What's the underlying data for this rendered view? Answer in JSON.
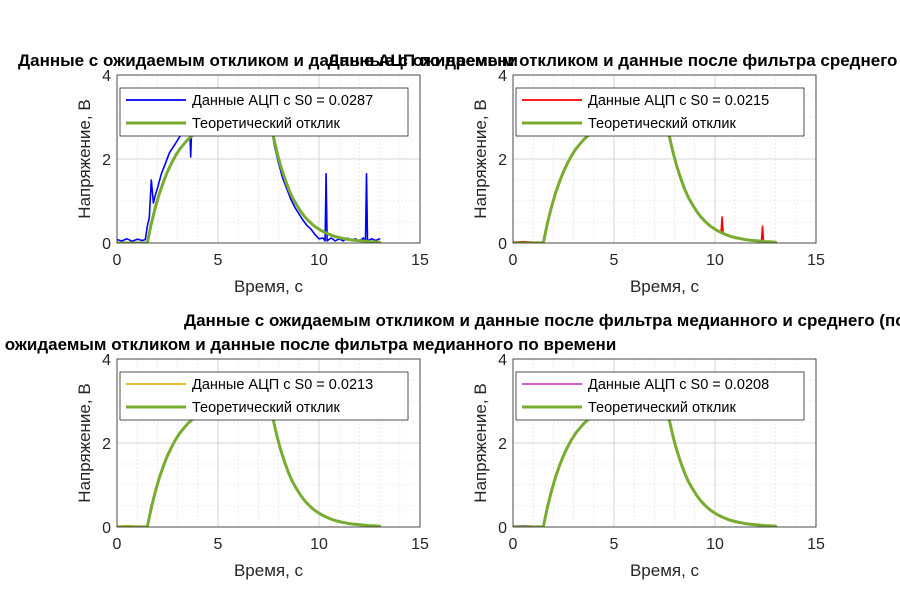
{
  "chart_data": [
    {
      "type": "line",
      "title": "Данные с ожидаемым откликом и данные АЦП по времени",
      "xlabel": "Время, с",
      "ylabel": "Напряжение, В",
      "xlim": [
        0,
        15
      ],
      "ylim": [
        0,
        4
      ],
      "xticks": [
        0,
        5,
        10,
        15
      ],
      "yticks": [
        0,
        2,
        4
      ],
      "grid": true,
      "legend_position": "top-right",
      "series": [
        {
          "name": "Данные АЦП с S0 = 0.0287",
          "color": "#0000ff",
          "x": [
            0,
            0.25,
            0.5,
            0.75,
            1.0,
            1.25,
            1.4,
            1.5,
            1.6,
            1.7,
            1.8,
            1.9,
            2.0,
            2.2,
            2.4,
            2.6,
            2.8,
            3.0,
            3.2,
            3.4,
            3.5,
            3.6,
            3.65,
            3.7,
            3.8,
            4.0,
            7.6,
            7.8,
            8.0,
            8.2,
            8.4,
            8.6,
            8.8,
            9.0,
            9.2,
            9.4,
            9.6,
            9.8,
            10.0,
            10.2,
            10.3,
            10.35,
            10.4,
            10.6,
            10.8,
            11.0,
            11.2,
            11.4,
            11.6,
            11.8,
            12.0,
            12.2,
            12.3,
            12.35,
            12.4,
            12.6,
            12.8,
            13.0
          ],
          "y": [
            0.08,
            0.05,
            0.1,
            0.04,
            0.09,
            0.06,
            0.08,
            0.4,
            0.6,
            1.5,
            0.95,
            1.15,
            1.3,
            1.65,
            1.9,
            2.15,
            2.3,
            2.45,
            2.6,
            2.7,
            2.75,
            2.75,
            2.05,
            2.75,
            2.8,
            2.85,
            2.85,
            2.3,
            1.9,
            1.55,
            1.3,
            1.05,
            0.85,
            0.7,
            0.55,
            0.42,
            0.33,
            0.2,
            0.1,
            0.12,
            0.05,
            1.65,
            0.05,
            0.12,
            0.05,
            0.1,
            0.05,
            0.12,
            0.06,
            0.1,
            0.05,
            0.12,
            0.05,
            1.65,
            0.05,
            0.1,
            0.06,
            0.1
          ]
        },
        {
          "name": "Теоретический отклик",
          "color": "#77ac30",
          "x": [
            0,
            1.5,
            1.7,
            1.9,
            2.1,
            2.3,
            2.5,
            2.7,
            2.9,
            3.1,
            3.3,
            3.5,
            3.7,
            3.9,
            7.7,
            7.9,
            8.1,
            8.3,
            8.5,
            8.7,
            8.9,
            9.1,
            9.3,
            9.5,
            9.7,
            9.9,
            10.1,
            10.3,
            10.5,
            10.7,
            10.9,
            11.1,
            11.3,
            11.5,
            11.7,
            11.9,
            12.1,
            12.3,
            12.5,
            12.7,
            13.0
          ],
          "y": [
            0.0,
            0.0,
            0.46,
            0.85,
            1.18,
            1.46,
            1.7,
            1.9,
            2.08,
            2.23,
            2.35,
            2.46,
            2.55,
            2.63,
            2.63,
            2.2,
            1.84,
            1.54,
            1.28,
            1.07,
            0.9,
            0.75,
            0.62,
            0.52,
            0.43,
            0.36,
            0.3,
            0.25,
            0.21,
            0.17,
            0.14,
            0.12,
            0.1,
            0.08,
            0.07,
            0.06,
            0.05,
            0.04,
            0.03,
            0.03,
            0.02
          ]
        }
      ]
    },
    {
      "type": "line",
      "title": "Данные с ожидаемым откликом и данные после фильтра среднего по времени",
      "xlabel": "Время, с",
      "ylabel": "Напряжение, В",
      "xlim": [
        0,
        15
      ],
      "ylim": [
        0,
        4
      ],
      "xticks": [
        0,
        5,
        10,
        15
      ],
      "yticks": [
        0,
        2,
        4
      ],
      "grid": true,
      "legend_position": "top-right",
      "series": [
        {
          "name": "Данные АЦП с S0 = 0.0215",
          "color": "#ff0000",
          "x": [
            0,
            0.5,
            1.0,
            1.5,
            1.7,
            1.9,
            2.1,
            2.3,
            2.5,
            2.7,
            2.9,
            3.1,
            3.3,
            3.5,
            3.7,
            3.9,
            7.7,
            7.9,
            8.1,
            8.3,
            8.5,
            8.7,
            8.9,
            9.1,
            9.3,
            9.5,
            9.7,
            9.9,
            10.1,
            10.2,
            10.3,
            10.35,
            10.4,
            10.5,
            10.7,
            10.9,
            11.1,
            11.3,
            11.5,
            11.7,
            11.9,
            12.1,
            12.2,
            12.3,
            12.35,
            12.4,
            12.5,
            12.7,
            13.0
          ],
          "y": [
            0.02,
            0.03,
            0.02,
            0.02,
            0.48,
            0.86,
            1.2,
            1.47,
            1.71,
            1.9,
            2.09,
            2.23,
            2.36,
            2.46,
            2.55,
            2.63,
            2.63,
            2.22,
            1.86,
            1.55,
            1.3,
            1.08,
            0.92,
            0.76,
            0.63,
            0.52,
            0.44,
            0.36,
            0.3,
            0.28,
            0.26,
            0.62,
            0.24,
            0.21,
            0.17,
            0.15,
            0.12,
            0.1,
            0.08,
            0.07,
            0.06,
            0.05,
            0.06,
            0.05,
            0.4,
            0.04,
            0.03,
            0.03,
            0.02
          ]
        },
        {
          "name": "Теоретический отклик",
          "color": "#77ac30",
          "x": [
            0,
            1.5,
            1.7,
            1.9,
            2.1,
            2.3,
            2.5,
            2.7,
            2.9,
            3.1,
            3.3,
            3.5,
            3.7,
            3.9,
            7.7,
            7.9,
            8.1,
            8.3,
            8.5,
            8.7,
            8.9,
            9.1,
            9.3,
            9.5,
            9.7,
            9.9,
            10.1,
            10.3,
            10.5,
            10.7,
            10.9,
            11.1,
            11.3,
            11.5,
            11.7,
            11.9,
            12.1,
            12.3,
            12.5,
            12.7,
            13.0
          ],
          "y": [
            0.0,
            0.0,
            0.46,
            0.85,
            1.18,
            1.46,
            1.7,
            1.9,
            2.08,
            2.23,
            2.35,
            2.46,
            2.55,
            2.63,
            2.63,
            2.2,
            1.84,
            1.54,
            1.28,
            1.07,
            0.9,
            0.75,
            0.62,
            0.52,
            0.43,
            0.36,
            0.3,
            0.25,
            0.21,
            0.17,
            0.14,
            0.12,
            0.1,
            0.08,
            0.07,
            0.06,
            0.05,
            0.04,
            0.03,
            0.03,
            0.02
          ]
        }
      ]
    },
    {
      "type": "line",
      "title": "Данные с ожидаемым откликом и данные после фильтра медианного по времени",
      "xlabel": "Время, с",
      "ylabel": "Напряжение, В",
      "xlim": [
        0,
        15
      ],
      "ylim": [
        0,
        4
      ],
      "xticks": [
        0,
        5,
        10,
        15
      ],
      "yticks": [
        0,
        2,
        4
      ],
      "grid": true,
      "legend_position": "top-right",
      "series": [
        {
          "name": "Данные АЦП с S0 = 0.0213",
          "color": "#edb120",
          "x": [
            0,
            0.5,
            1.0,
            1.5,
            1.7,
            1.9,
            2.1,
            2.3,
            2.5,
            2.7,
            2.9,
            3.1,
            3.3,
            3.5,
            3.7,
            3.9,
            7.7,
            7.9,
            8.1,
            8.3,
            8.5,
            8.7,
            8.9,
            9.1,
            9.3,
            9.5,
            9.7,
            9.9,
            10.1,
            10.3,
            10.5,
            10.7,
            10.9,
            11.1,
            11.3,
            11.5,
            11.7,
            11.9,
            12.1,
            12.3,
            12.5,
            12.7,
            13.0
          ],
          "y": [
            0.02,
            0.03,
            0.02,
            0.02,
            0.48,
            0.86,
            1.2,
            1.47,
            1.71,
            1.9,
            2.09,
            2.23,
            2.36,
            2.46,
            2.55,
            2.63,
            2.63,
            2.22,
            1.86,
            1.55,
            1.3,
            1.08,
            0.92,
            0.76,
            0.63,
            0.52,
            0.44,
            0.36,
            0.31,
            0.26,
            0.22,
            0.18,
            0.15,
            0.13,
            0.11,
            0.09,
            0.08,
            0.07,
            0.06,
            0.05,
            0.04,
            0.03,
            0.02
          ]
        },
        {
          "name": "Теоретический отклик",
          "color": "#77ac30",
          "x": [
            0,
            1.5,
            1.7,
            1.9,
            2.1,
            2.3,
            2.5,
            2.7,
            2.9,
            3.1,
            3.3,
            3.5,
            3.7,
            3.9,
            7.7,
            7.9,
            8.1,
            8.3,
            8.5,
            8.7,
            8.9,
            9.1,
            9.3,
            9.5,
            9.7,
            9.9,
            10.1,
            10.3,
            10.5,
            10.7,
            10.9,
            11.1,
            11.3,
            11.5,
            11.7,
            11.9,
            12.1,
            12.3,
            12.5,
            12.7,
            13.0
          ],
          "y": [
            0.0,
            0.0,
            0.46,
            0.85,
            1.18,
            1.46,
            1.7,
            1.9,
            2.08,
            2.23,
            2.35,
            2.46,
            2.55,
            2.63,
            2.63,
            2.2,
            1.84,
            1.54,
            1.28,
            1.07,
            0.9,
            0.75,
            0.62,
            0.52,
            0.43,
            0.36,
            0.3,
            0.25,
            0.21,
            0.17,
            0.14,
            0.12,
            0.1,
            0.08,
            0.07,
            0.06,
            0.05,
            0.04,
            0.03,
            0.03,
            0.02
          ]
        }
      ]
    },
    {
      "type": "line",
      "title": "Данные с ожидаемым откликом и данные после фильтра медианного и среднего (последовательно) по времени",
      "xlabel": "Время, с",
      "ylabel": "Напряжение, В",
      "xlim": [
        0,
        15
      ],
      "ylim": [
        0,
        4
      ],
      "xticks": [
        0,
        5,
        10,
        15
      ],
      "yticks": [
        0,
        2,
        4
      ],
      "grid": true,
      "legend_position": "top-right",
      "series": [
        {
          "name": "Данные АЦП с S0 = 0.0208",
          "color": "#cc44cc",
          "x": [
            0,
            0.5,
            1.0,
            1.5,
            1.7,
            1.9,
            2.1,
            2.3,
            2.5,
            2.7,
            2.9,
            3.1,
            3.3,
            3.5,
            3.7,
            3.9,
            7.7,
            7.9,
            8.1,
            8.3,
            8.5,
            8.7,
            8.9,
            9.1,
            9.3,
            9.5,
            9.7,
            9.9,
            10.1,
            10.3,
            10.5,
            10.7,
            10.9,
            11.1,
            11.3,
            11.5,
            11.7,
            11.9,
            12.1,
            12.3,
            12.5,
            12.7,
            13.0
          ],
          "y": [
            0.02,
            0.03,
            0.02,
            0.02,
            0.48,
            0.86,
            1.2,
            1.47,
            1.71,
            1.9,
            2.09,
            2.23,
            2.36,
            2.46,
            2.55,
            2.63,
            2.63,
            2.22,
            1.86,
            1.55,
            1.3,
            1.08,
            0.92,
            0.76,
            0.63,
            0.52,
            0.44,
            0.37,
            0.31,
            0.26,
            0.22,
            0.18,
            0.16,
            0.13,
            0.11,
            0.09,
            0.08,
            0.07,
            0.06,
            0.05,
            0.04,
            0.03,
            0.02
          ]
        },
        {
          "name": "Теоретический отклик",
          "color": "#77ac30",
          "x": [
            0,
            1.5,
            1.7,
            1.9,
            2.1,
            2.3,
            2.5,
            2.7,
            2.9,
            3.1,
            3.3,
            3.5,
            3.7,
            3.9,
            7.7,
            7.9,
            8.1,
            8.3,
            8.5,
            8.7,
            8.9,
            9.1,
            9.3,
            9.5,
            9.7,
            9.9,
            10.1,
            10.3,
            10.5,
            10.7,
            10.9,
            11.1,
            11.3,
            11.5,
            11.7,
            11.9,
            12.1,
            12.3,
            12.5,
            12.7,
            13.0
          ],
          "y": [
            0.0,
            0.0,
            0.46,
            0.85,
            1.18,
            1.46,
            1.7,
            1.9,
            2.08,
            2.23,
            2.35,
            2.46,
            2.55,
            2.63,
            2.63,
            2.2,
            1.84,
            1.54,
            1.28,
            1.07,
            0.9,
            0.75,
            0.62,
            0.52,
            0.43,
            0.36,
            0.3,
            0.25,
            0.21,
            0.17,
            0.14,
            0.12,
            0.1,
            0.08,
            0.07,
            0.06,
            0.05,
            0.04,
            0.03,
            0.03,
            0.02
          ]
        }
      ]
    }
  ]
}
